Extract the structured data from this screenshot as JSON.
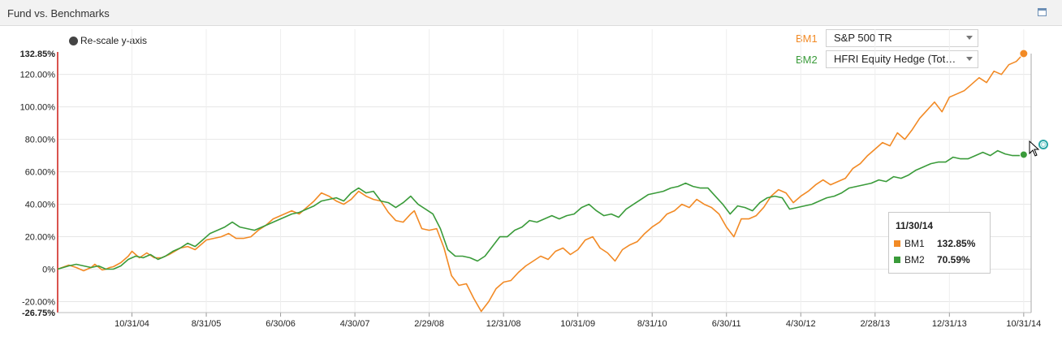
{
  "panel": {
    "title": "Fund vs. Benchmarks"
  },
  "controls": {
    "rescale_label": "Re-scale y-axis"
  },
  "benchmarks": [
    {
      "label": "BM1",
      "name": "S&P 500 TR",
      "color": "#f28a25"
    },
    {
      "label": "BM2",
      "name": "HFRI Equity Hedge (Tot…",
      "color": "#3a9b3a"
    }
  ],
  "tooltip": {
    "date": "11/30/14",
    "rows": [
      {
        "name": "BM1",
        "value": "132.85%",
        "color": "#f28a25"
      },
      {
        "name": "BM2",
        "value": "70.59%",
        "color": "#3a9b3a"
      }
    ]
  },
  "chart_data": {
    "type": "line",
    "ylim": [
      -26.75,
      132.85
    ],
    "y_ticks": [
      120,
      100,
      80,
      60,
      40,
      20,
      0,
      -20
    ],
    "y_tick_labels": [
      "120.00%",
      "100.00%",
      "80.00%",
      "60.00%",
      "40.00%",
      "20.00%",
      "0%",
      "-20.00%"
    ],
    "y_max_label": "132.85%",
    "y_min_label": "-26.75%",
    "x_tick_labels": [
      "10/31/04",
      "8/31/05",
      "6/30/06",
      "4/30/07",
      "2/29/08",
      "12/31/08",
      "10/31/09",
      "8/31/10",
      "6/30/11",
      "4/30/12",
      "2/28/13",
      "12/31/13",
      "10/31/14"
    ],
    "x_tick_months": [
      10,
      20,
      30,
      40,
      50,
      60,
      70,
      80,
      90,
      100,
      110,
      120,
      130
    ],
    "x_range_months": [
      0,
      131
    ],
    "grid": true,
    "series": [
      {
        "name": "BM1",
        "color": "#f28a25",
        "points": [
          [
            0,
            0
          ],
          [
            3,
            2.5
          ],
          [
            5,
            1
          ],
          [
            7,
            -1
          ],
          [
            9,
            1
          ],
          [
            10,
            3
          ],
          [
            12,
            -0.5
          ],
          [
            13,
            0
          ],
          [
            14,
            1
          ],
          [
            15,
            1.5
          ],
          [
            17,
            4
          ],
          [
            19,
            8
          ],
          [
            20,
            11
          ],
          [
            22,
            7
          ],
          [
            24,
            10
          ],
          [
            26,
            7
          ],
          [
            28,
            7
          ],
          [
            30,
            9
          ],
          [
            33,
            13
          ],
          [
            35,
            14
          ],
          [
            37,
            12
          ],
          [
            39,
            16
          ],
          [
            40,
            18
          ],
          [
            42,
            19
          ],
          [
            44,
            20
          ],
          [
            46,
            22
          ],
          [
            48,
            19
          ],
          [
            50,
            19
          ],
          [
            52,
            20
          ],
          [
            54,
            24
          ],
          [
            56,
            27
          ],
          [
            58,
            31
          ],
          [
            60,
            33
          ],
          [
            63,
            36
          ],
          [
            65,
            34
          ],
          [
            67,
            38
          ],
          [
            69,
            42
          ],
          [
            71,
            47
          ],
          [
            73,
            45
          ],
          [
            75,
            42
          ],
          [
            77,
            40
          ],
          [
            79,
            43
          ],
          [
            81,
            48
          ],
          [
            83,
            45
          ],
          [
            85,
            43
          ],
          [
            87,
            42
          ],
          [
            89,
            35
          ],
          [
            91,
            30
          ],
          [
            93,
            29
          ],
          [
            95,
            34
          ],
          [
            96,
            36
          ],
          [
            98,
            25
          ],
          [
            100,
            24
          ],
          [
            102,
            25
          ],
          [
            104,
            13
          ],
          [
            106,
            -4
          ],
          [
            108,
            -10
          ],
          [
            110,
            -9
          ],
          [
            112,
            -18
          ],
          [
            114,
            -26
          ],
          [
            116,
            -20
          ],
          [
            118,
            -12
          ],
          [
            120,
            -8
          ],
          [
            122,
            -7
          ],
          [
            124,
            -2
          ],
          [
            126,
            2
          ],
          [
            128,
            5
          ],
          [
            130,
            8
          ],
          [
            132,
            6
          ],
          [
            134,
            11
          ],
          [
            136,
            13
          ],
          [
            138,
            9
          ],
          [
            140,
            12
          ],
          [
            142,
            18
          ],
          [
            144,
            20
          ],
          [
            146,
            13
          ],
          [
            148,
            10
          ],
          [
            150,
            5
          ],
          [
            152,
            12
          ],
          [
            154,
            15
          ],
          [
            156,
            17
          ],
          [
            158,
            22
          ],
          [
            160,
            26
          ],
          [
            162,
            29
          ],
          [
            164,
            34
          ],
          [
            166,
            36
          ],
          [
            168,
            40
          ],
          [
            170,
            38
          ],
          [
            172,
            43
          ],
          [
            174,
            40
          ],
          [
            176,
            38
          ],
          [
            178,
            34
          ],
          [
            180,
            26
          ],
          [
            182,
            20
          ],
          [
            184,
            31
          ],
          [
            186,
            31
          ],
          [
            188,
            33
          ],
          [
            190,
            38
          ],
          [
            192,
            45
          ],
          [
            194,
            49
          ],
          [
            196,
            47
          ],
          [
            198,
            41
          ],
          [
            200,
            45
          ],
          [
            202,
            48
          ],
          [
            204,
            52
          ],
          [
            206,
            55
          ],
          [
            208,
            52
          ],
          [
            210,
            54
          ],
          [
            212,
            56
          ],
          [
            214,
            62
          ],
          [
            216,
            65
          ],
          [
            218,
            70
          ],
          [
            220,
            74
          ],
          [
            222,
            78
          ],
          [
            224,
            76
          ],
          [
            226,
            84
          ],
          [
            228,
            80
          ],
          [
            230,
            86
          ],
          [
            232,
            93
          ],
          [
            234,
            98
          ],
          [
            236,
            103
          ],
          [
            238,
            97
          ],
          [
            240,
            106
          ],
          [
            242,
            108
          ],
          [
            244,
            110
          ],
          [
            246,
            114
          ],
          [
            248,
            118
          ],
          [
            250,
            115
          ],
          [
            252,
            122
          ],
          [
            254,
            120
          ],
          [
            256,
            126
          ],
          [
            258,
            128
          ],
          [
            260,
            132.85
          ]
        ]
      },
      {
        "name": "BM2",
        "color": "#3a9b3a",
        "points": [
          [
            0,
            0
          ],
          [
            3,
            2
          ],
          [
            5,
            3
          ],
          [
            7,
            2
          ],
          [
            9,
            1
          ],
          [
            11,
            2
          ],
          [
            13,
            0
          ],
          [
            15,
            0
          ],
          [
            17,
            2
          ],
          [
            19,
            6
          ],
          [
            21,
            8
          ],
          [
            23,
            7
          ],
          [
            25,
            9
          ],
          [
            27,
            6
          ],
          [
            29,
            8
          ],
          [
            31,
            11
          ],
          [
            33,
            13
          ],
          [
            35,
            16
          ],
          [
            37,
            14
          ],
          [
            39,
            18
          ],
          [
            41,
            22
          ],
          [
            43,
            24
          ],
          [
            45,
            26
          ],
          [
            47,
            29
          ],
          [
            49,
            26
          ],
          [
            51,
            25
          ],
          [
            53,
            24
          ],
          [
            55,
            26
          ],
          [
            57,
            28
          ],
          [
            59,
            30
          ],
          [
            61,
            32
          ],
          [
            63,
            34
          ],
          [
            65,
            35
          ],
          [
            67,
            37
          ],
          [
            69,
            39
          ],
          [
            71,
            42
          ],
          [
            73,
            43
          ],
          [
            75,
            44
          ],
          [
            77,
            42
          ],
          [
            79,
            47
          ],
          [
            81,
            50
          ],
          [
            83,
            47
          ],
          [
            85,
            48
          ],
          [
            87,
            42
          ],
          [
            89,
            41
          ],
          [
            91,
            38
          ],
          [
            93,
            41
          ],
          [
            95,
            45
          ],
          [
            97,
            40
          ],
          [
            99,
            37
          ],
          [
            101,
            34
          ],
          [
            103,
            25
          ],
          [
            105,
            12
          ],
          [
            107,
            8
          ],
          [
            109,
            8
          ],
          [
            111,
            7
          ],
          [
            113,
            5
          ],
          [
            115,
            8
          ],
          [
            117,
            14
          ],
          [
            119,
            20
          ],
          [
            121,
            20
          ],
          [
            123,
            24
          ],
          [
            125,
            26
          ],
          [
            127,
            30
          ],
          [
            129,
            29
          ],
          [
            131,
            31
          ],
          [
            133,
            33
          ],
          [
            135,
            31
          ],
          [
            137,
            33
          ],
          [
            139,
            34
          ],
          [
            141,
            38
          ],
          [
            143,
            40
          ],
          [
            145,
            36
          ],
          [
            147,
            33
          ],
          [
            149,
            34
          ],
          [
            151,
            32
          ],
          [
            153,
            37
          ],
          [
            155,
            40
          ],
          [
            157,
            43
          ],
          [
            159,
            46
          ],
          [
            161,
            47
          ],
          [
            163,
            48
          ],
          [
            165,
            50
          ],
          [
            167,
            51
          ],
          [
            169,
            53
          ],
          [
            171,
            51
          ],
          [
            173,
            50
          ],
          [
            175,
            50
          ],
          [
            177,
            45
          ],
          [
            179,
            40
          ],
          [
            181,
            34
          ],
          [
            183,
            39
          ],
          [
            185,
            38
          ],
          [
            187,
            36
          ],
          [
            189,
            41
          ],
          [
            191,
            44
          ],
          [
            193,
            45
          ],
          [
            195,
            44
          ],
          [
            197,
            37
          ],
          [
            199,
            38
          ],
          [
            201,
            39
          ],
          [
            203,
            40
          ],
          [
            205,
            42
          ],
          [
            207,
            44
          ],
          [
            209,
            45
          ],
          [
            211,
            47
          ],
          [
            213,
            50
          ],
          [
            215,
            51
          ],
          [
            217,
            52
          ],
          [
            219,
            53
          ],
          [
            221,
            55
          ],
          [
            223,
            54
          ],
          [
            225,
            57
          ],
          [
            227,
            56
          ],
          [
            229,
            58
          ],
          [
            231,
            61
          ],
          [
            233,
            63
          ],
          [
            235,
            65
          ],
          [
            237,
            66
          ],
          [
            239,
            66
          ],
          [
            241,
            69
          ],
          [
            243,
            68
          ],
          [
            245,
            68
          ],
          [
            247,
            70
          ],
          [
            249,
            72
          ],
          [
            251,
            70
          ],
          [
            253,
            73
          ],
          [
            255,
            71
          ],
          [
            257,
            70
          ],
          [
            259,
            70
          ],
          [
            260,
            70.59
          ]
        ]
      }
    ]
  }
}
